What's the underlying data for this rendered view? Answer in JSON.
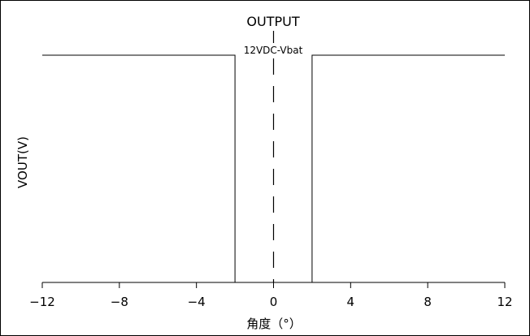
{
  "chart_data": {
    "type": "line",
    "title": "OUTPUT",
    "annotation": "12VDC-Vbat",
    "xlabel": "角度（°）",
    "ylabel": "VOUT(V)",
    "xlim": [
      -12,
      12
    ],
    "ylim": [
      0,
      1
    ],
    "x_ticks": [
      -12,
      -8,
      -4,
      0,
      4,
      8,
      12
    ],
    "x_tick_labels": [
      "−12",
      "−8",
      "−4",
      "0",
      "4",
      "8",
      "12"
    ],
    "centerline_x": 0,
    "grid": false,
    "series": [
      {
        "points": [
          [
            -12,
            1
          ],
          [
            -2,
            1
          ],
          [
            -2,
            0
          ],
          [
            2,
            0
          ],
          [
            2,
            1
          ],
          [
            12,
            1
          ]
        ]
      }
    ]
  }
}
